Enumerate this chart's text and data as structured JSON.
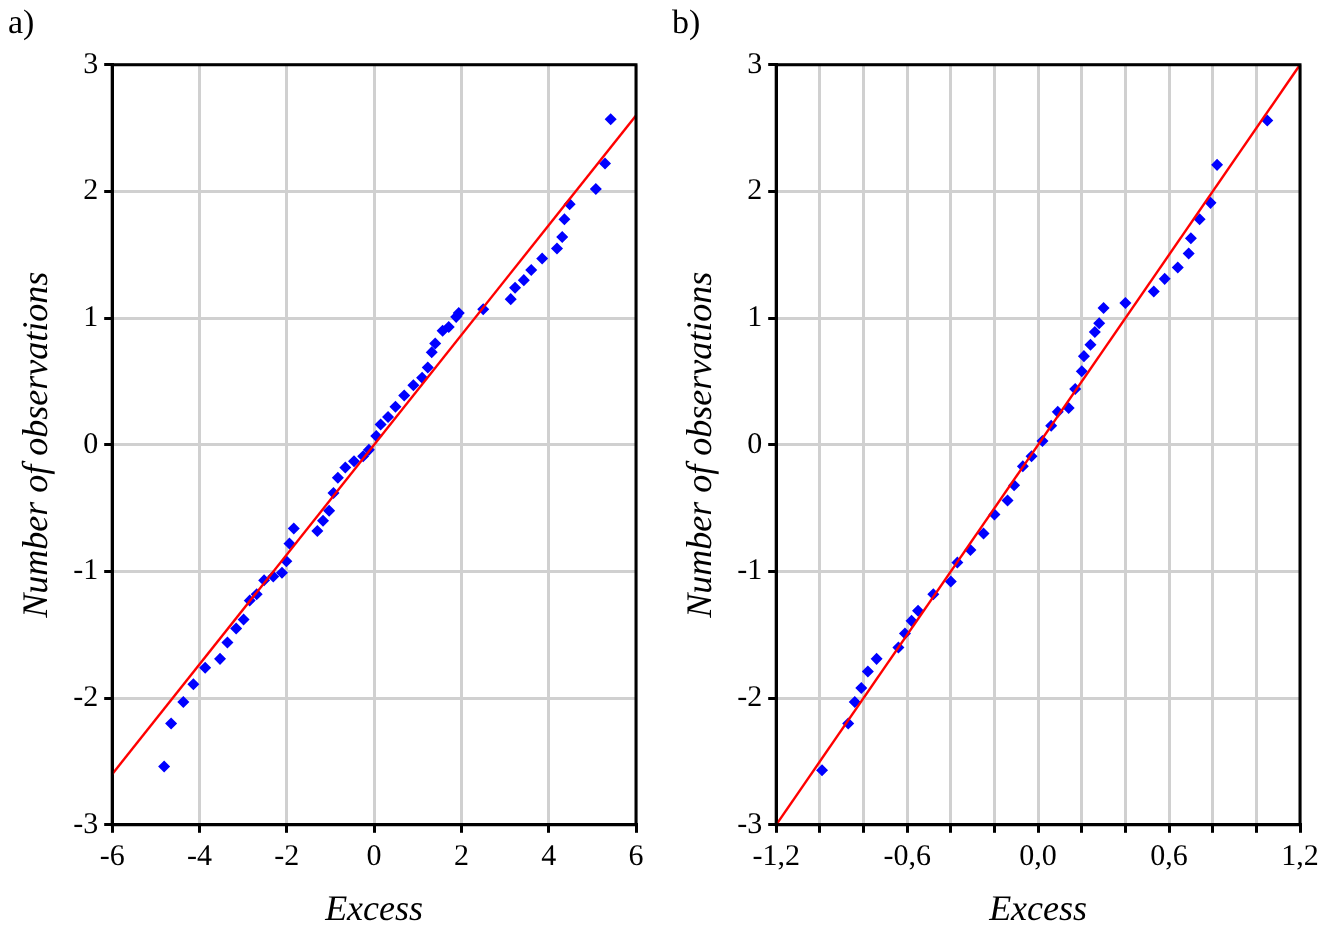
{
  "chart_data": [
    {
      "type": "scatter",
      "title": "a)",
      "xlabel": "Excess",
      "ylabel": "Number of observations",
      "xlim": [
        -6,
        6
      ],
      "ylim": [
        -3,
        3
      ],
      "xticks": [
        -6,
        -4,
        -2,
        0,
        2,
        4,
        6
      ],
      "yticks": [
        -3,
        -2,
        -1,
        0,
        1,
        2,
        3
      ],
      "grid": true,
      "legend": false,
      "marker": "diamond",
      "series": [
        {
          "type": "scatter",
          "color": "#0000ff",
          "x": [
            -4.81,
            -4.65,
            -4.37,
            -4.14,
            -3.87,
            -3.53,
            -3.36,
            -3.16,
            -2.99,
            -2.85,
            -2.69,
            -2.52,
            -2.31,
            -2.11,
            -2.01,
            -1.94,
            -1.84,
            -1.3,
            -1.17,
            -1.03,
            -0.93,
            -0.83,
            -0.66,
            -0.46,
            -0.25,
            -0.12,
            0.05,
            0.15,
            0.32,
            0.49,
            0.69,
            0.9,
            1.1,
            1.23,
            1.32,
            1.4,
            1.57,
            1.71,
            1.88,
            1.94,
            2.5,
            3.13,
            3.23,
            3.43,
            3.6,
            3.85,
            4.19,
            4.31,
            4.36,
            4.48,
            5.08,
            5.29,
            5.42
          ],
          "values": [
            -2.54,
            -2.2,
            -2.03,
            -1.89,
            -1.76,
            -1.69,
            -1.56,
            -1.45,
            -1.38,
            -1.23,
            -1.18,
            -1.07,
            -1.04,
            -1.01,
            -0.92,
            -0.78,
            -0.66,
            -0.68,
            -0.6,
            -0.52,
            -0.38,
            -0.26,
            -0.18,
            -0.13,
            -0.09,
            -0.04,
            0.07,
            0.16,
            0.22,
            0.3,
            0.39,
            0.47,
            0.53,
            0.61,
            0.73,
            0.8,
            0.9,
            0.93,
            1.01,
            1.04,
            1.07,
            1.15,
            1.24,
            1.3,
            1.38,
            1.47,
            1.55,
            1.64,
            1.78,
            1.9,
            2.02,
            2.22,
            2.57
          ]
        },
        {
          "type": "line",
          "color": "#ff0000",
          "marker": "none",
          "x": [
            -6,
            6
          ],
          "values": [
            -2.6,
            2.6
          ]
        }
      ]
    },
    {
      "type": "scatter",
      "title": "b)",
      "xlabel": "Excess",
      "ylabel": "Number of observations",
      "xlim": [
        -1.2,
        1.2
      ],
      "ylim": [
        -3,
        3
      ],
      "xticks": [
        {
          "value": -1.2,
          "label": "-1,2"
        },
        {
          "value": -1.0,
          "label": null
        },
        {
          "value": -0.8,
          "label": null
        },
        {
          "value": -0.6,
          "label": "-0,6"
        },
        {
          "value": -0.4,
          "label": null
        },
        {
          "value": -0.2,
          "label": null
        },
        {
          "value": 0,
          "label": "0,0"
        },
        {
          "value": 0.2,
          "label": null
        },
        {
          "value": 0.4,
          "label": null
        },
        {
          "value": 0.6,
          "label": "0,6"
        },
        {
          "value": 0.8,
          "label": null
        },
        {
          "value": 1.0,
          "label": null
        },
        {
          "value": 1.2,
          "label": "1,2"
        }
      ],
      "yticks": [
        -3,
        -2,
        -1,
        0,
        1,
        2,
        3
      ],
      "grid": true,
      "legend": false,
      "marker": "diamond",
      "series": [
        {
          "type": "scatter",
          "color": "#0000ff",
          "x": [
            -0.99,
            -0.87,
            -0.84,
            -0.81,
            -0.78,
            -0.74,
            -0.64,
            -0.61,
            -0.58,
            -0.55,
            -0.48,
            -0.4,
            -0.37,
            -0.31,
            -0.25,
            -0.2,
            -0.14,
            -0.11,
            -0.07,
            -0.03,
            0.02,
            0.06,
            0.09,
            0.14,
            0.17,
            0.2,
            0.21,
            0.24,
            0.26,
            0.28,
            0.3,
            0.4,
            0.53,
            0.58,
            0.64,
            0.69,
            0.7,
            0.74,
            0.79,
            0.82,
            1.05
          ],
          "values": [
            -2.57,
            -2.2,
            -2.03,
            -1.92,
            -1.79,
            -1.69,
            -1.6,
            -1.49,
            -1.39,
            -1.31,
            -1.18,
            -1.08,
            -0.93,
            -0.83,
            -0.7,
            -0.55,
            -0.44,
            -0.32,
            -0.17,
            -0.09,
            0.03,
            0.15,
            0.26,
            0.29,
            0.44,
            0.58,
            0.7,
            0.79,
            0.89,
            0.96,
            1.08,
            1.12,
            1.21,
            1.31,
            1.4,
            1.51,
            1.63,
            1.78,
            1.91,
            2.21,
            2.56
          ]
        },
        {
          "type": "line",
          "color": "#ff0000",
          "marker": "none",
          "x": [
            -1.2,
            1.2
          ],
          "values": [
            -3,
            3
          ]
        }
      ]
    }
  ]
}
